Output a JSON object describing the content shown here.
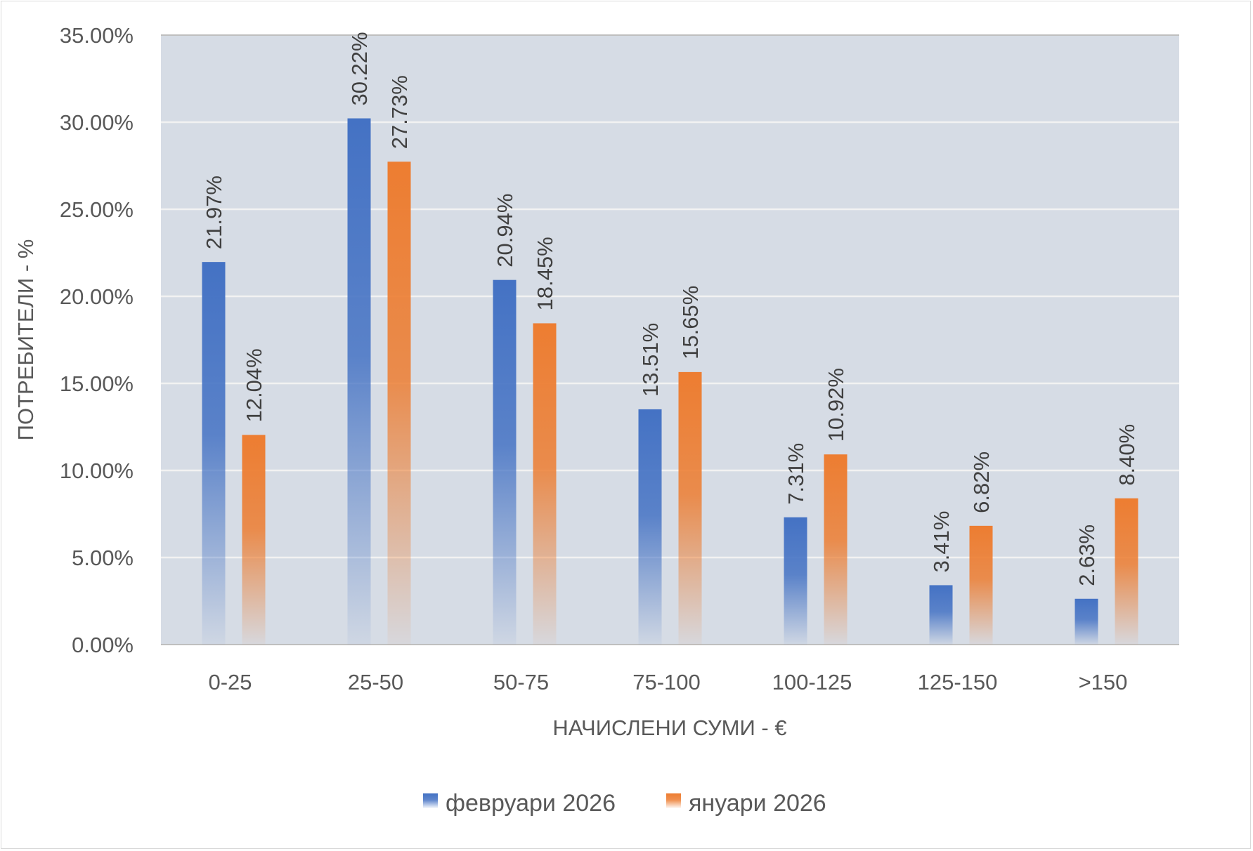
{
  "chart_data": {
    "type": "bar",
    "title": "",
    "xlabel": "НАЧИСЛЕНИ СУМИ - €",
    "ylabel": "ПОТРЕБИТЕЛИ - %",
    "categories": [
      "0-25",
      "25-50",
      "50-75",
      "75-100",
      "100-125",
      "125-150",
      ">150"
    ],
    "series": [
      {
        "name": "февруари 2026",
        "color": "#4472c4",
        "values": [
          21.97,
          30.22,
          20.94,
          13.51,
          7.31,
          3.41,
          2.63
        ],
        "labels": [
          "21.97%",
          "30.22%",
          "20.94%",
          "13.51%",
          "7.31%",
          "3.41%",
          "2.63%"
        ]
      },
      {
        "name": "януари 2026",
        "color": "#ed7d31",
        "values": [
          12.04,
          27.73,
          18.45,
          15.65,
          10.92,
          6.82,
          8.4
        ],
        "labels": [
          "12.04%",
          "27.73%",
          "18.45%",
          "15.65%",
          "10.92%",
          "6.82%",
          "8.40%"
        ]
      }
    ],
    "ylim": [
      0,
      35
    ],
    "yticks": [
      0,
      5,
      10,
      15,
      20,
      25,
      30,
      35
    ],
    "ytick_labels": [
      "0.00%",
      "5.00%",
      "10.00%",
      "15.00%",
      "20.00%",
      "25.00%",
      "30.00%",
      "35.00%"
    ],
    "grid": true,
    "plot_background": "#d6dce5",
    "legend_position": "bottom"
  }
}
